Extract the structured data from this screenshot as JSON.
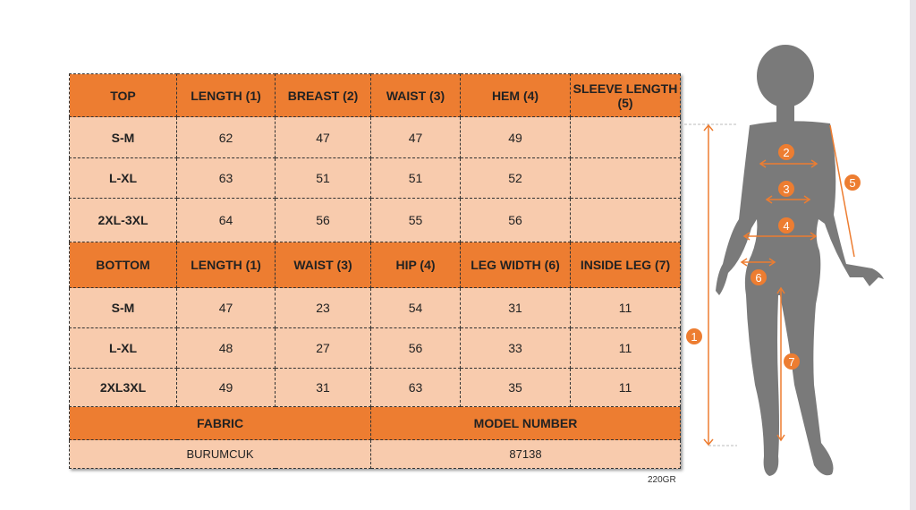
{
  "top": {
    "header": [
      "TOP",
      "LENGTH (1)",
      "BREAST (2)",
      "WAIST (3)",
      "HEM (4)",
      "SLEEVE LENGTH (5)"
    ],
    "rows": [
      [
        "S-M",
        "62",
        "47",
        "47",
        "49",
        ""
      ],
      [
        "L-XL",
        "63",
        "51",
        "51",
        "52",
        ""
      ],
      [
        "2XL-3XL",
        "64",
        "56",
        "55",
        "56",
        ""
      ]
    ]
  },
  "bottom": {
    "header": [
      "BOTTOM",
      "LENGTH (1)",
      "WAIST (3)",
      "HIP (4)",
      "LEG WIDTH (6)",
      "INSIDE LEG (7)"
    ],
    "rows": [
      [
        "S-M",
        "47",
        "23",
        "54",
        "31",
        "11"
      ],
      [
        "L-XL",
        "48",
        "27",
        "56",
        "33",
        "11"
      ],
      [
        "2XL3XL",
        "49",
        "31",
        "63",
        "35",
        "11"
      ]
    ]
  },
  "info": {
    "fabric_label": "FABRIC",
    "model_label": "MODEL NUMBER",
    "fabric": "BURUMCUK",
    "model": "87138"
  },
  "weight": "220GR",
  "figure": {
    "markers": [
      "1",
      "2",
      "3",
      "4",
      "5",
      "6",
      "7"
    ],
    "accent": "#ed7d31",
    "silhouette": "#7a7a7a"
  }
}
